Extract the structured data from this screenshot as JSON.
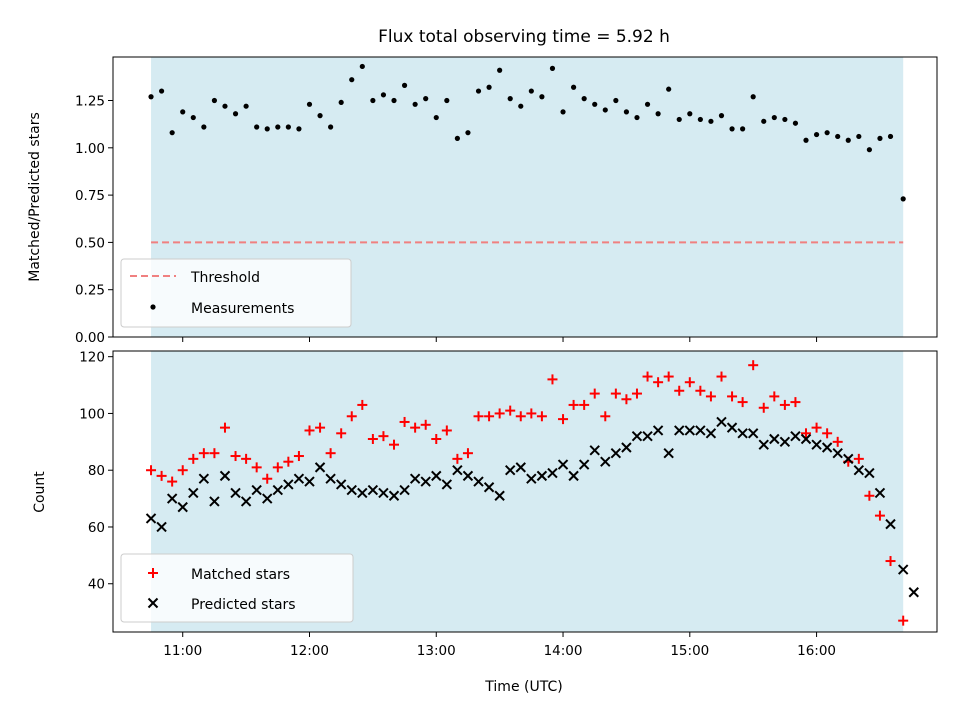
{
  "title": "Flux total observing time = 5.92 h",
  "colors": {
    "shade": "#add8e6",
    "threshold": "#f08080",
    "measurement": "#000000",
    "matched": "#ff0000",
    "predicted": "#000000"
  },
  "chart_data": [
    {
      "type": "scatter",
      "ylabel": "Matched/Predicted stars",
      "xlabel": "",
      "xlim": [
        "10:27",
        "16:57"
      ],
      "ylim": [
        0.0,
        1.48
      ],
      "yticks": [
        "0.00",
        "0.25",
        "0.50",
        "0.75",
        "1.00",
        "1.25"
      ],
      "ytick_values": [
        0.0,
        0.25,
        0.5,
        0.75,
        1.0,
        1.25
      ],
      "observing_window": [
        "10:45",
        "16:41"
      ],
      "threshold": 0.5,
      "legend": {
        "position": "lower-left",
        "entries": [
          "Threshold",
          "Measurements"
        ]
      },
      "series": [
        {
          "name": "Measurements",
          "marker": "dot",
          "x": [
            "10:45",
            "10:50",
            "10:55",
            "11:00",
            "11:05",
            "11:10",
            "11:15",
            "11:20",
            "11:25",
            "11:30",
            "11:35",
            "11:40",
            "11:45",
            "11:50",
            "11:55",
            "12:00",
            "12:05",
            "12:10",
            "12:15",
            "12:20",
            "12:25",
            "12:30",
            "12:35",
            "12:40",
            "12:45",
            "12:50",
            "12:55",
            "13:00",
            "13:05",
            "13:10",
            "13:15",
            "13:20",
            "13:25",
            "13:30",
            "13:35",
            "13:40",
            "13:45",
            "13:50",
            "13:55",
            "14:00",
            "14:05",
            "14:10",
            "14:15",
            "14:20",
            "14:25",
            "14:30",
            "14:35",
            "14:40",
            "14:45",
            "14:50",
            "14:55",
            "15:00",
            "15:05",
            "15:10",
            "15:15",
            "15:20",
            "15:25",
            "15:30",
            "15:35",
            "15:40",
            "15:45",
            "15:50",
            "15:55",
            "16:00",
            "16:05",
            "16:10",
            "16:15",
            "16:20",
            "16:25",
            "16:30",
            "16:35",
            "16:41"
          ],
          "y": [
            1.27,
            1.3,
            1.08,
            1.19,
            1.16,
            1.11,
            1.25,
            1.22,
            1.18,
            1.22,
            1.11,
            1.1,
            1.11,
            1.11,
            1.1,
            1.23,
            1.17,
            1.11,
            1.24,
            1.36,
            1.43,
            1.25,
            1.28,
            1.25,
            1.33,
            1.23,
            1.26,
            1.16,
            1.25,
            1.05,
            1.08,
            1.3,
            1.32,
            1.41,
            1.26,
            1.22,
            1.3,
            1.27,
            1.42,
            1.19,
            1.32,
            1.26,
            1.23,
            1.2,
            1.25,
            1.19,
            1.16,
            1.23,
            1.18,
            1.31,
            1.15,
            1.18,
            1.15,
            1.14,
            1.17,
            1.1,
            1.1,
            1.27,
            1.14,
            1.16,
            1.15,
            1.13,
            1.04,
            1.07,
            1.08,
            1.06,
            1.04,
            1.06,
            0.99,
            1.05,
            1.06,
            0.73
          ]
        }
      ]
    },
    {
      "type": "scatter",
      "ylabel": "Count",
      "xlabel": "Time (UTC)",
      "xlim": [
        "10:27",
        "16:57"
      ],
      "ylim": [
        23,
        122
      ],
      "yticks": [
        "40",
        "60",
        "80",
        "100",
        "120"
      ],
      "ytick_values": [
        40,
        60,
        80,
        100,
        120
      ],
      "xticks": [
        "11:00",
        "12:00",
        "13:00",
        "14:00",
        "15:00",
        "16:00"
      ],
      "observing_window": [
        "10:45",
        "16:41"
      ],
      "legend": {
        "position": "lower-left",
        "entries": [
          "Matched stars",
          "Predicted stars"
        ]
      },
      "series": [
        {
          "name": "Matched stars",
          "marker": "plus",
          "x": [
            "10:45",
            "10:50",
            "10:55",
            "11:00",
            "11:05",
            "11:10",
            "11:15",
            "11:20",
            "11:25",
            "11:30",
            "11:35",
            "11:40",
            "11:45",
            "11:50",
            "11:55",
            "12:00",
            "12:05",
            "12:10",
            "12:15",
            "12:20",
            "12:25",
            "12:30",
            "12:35",
            "12:40",
            "12:45",
            "12:50",
            "12:55",
            "13:00",
            "13:05",
            "13:10",
            "13:15",
            "13:20",
            "13:25",
            "13:30",
            "13:35",
            "13:40",
            "13:45",
            "13:50",
            "13:55",
            "14:00",
            "14:05",
            "14:10",
            "14:15",
            "14:20",
            "14:25",
            "14:30",
            "14:35",
            "14:40",
            "14:45",
            "14:50",
            "14:55",
            "15:00",
            "15:05",
            "15:10",
            "15:15",
            "15:20",
            "15:25",
            "15:30",
            "15:35",
            "15:40",
            "15:45",
            "15:50",
            "15:55",
            "16:00",
            "16:05",
            "16:10",
            "16:15",
            "16:20",
            "16:25",
            "16:30",
            "16:35",
            "16:41"
          ],
          "y": [
            80,
            78,
            76,
            80,
            84,
            86,
            86,
            95,
            85,
            84,
            81,
            77,
            81,
            83,
            85,
            94,
            95,
            86,
            93,
            99,
            103,
            91,
            92,
            89,
            97,
            95,
            96,
            91,
            94,
            84,
            86,
            99,
            99,
            100,
            101,
            99,
            100,
            99,
            112,
            98,
            103,
            103,
            107,
            99,
            107,
            105,
            107,
            113,
            111,
            113,
            108,
            111,
            108,
            106,
            113,
            106,
            104,
            117,
            102,
            106,
            103,
            104,
            93,
            95,
            93,
            90,
            83,
            84,
            71,
            64,
            48,
            27
          ]
        },
        {
          "name": "Predicted stars",
          "marker": "x",
          "x": [
            "10:45",
            "10:50",
            "10:55",
            "11:00",
            "11:05",
            "11:10",
            "11:15",
            "11:20",
            "11:25",
            "11:30",
            "11:35",
            "11:40",
            "11:45",
            "11:50",
            "11:55",
            "12:00",
            "12:05",
            "12:10",
            "12:15",
            "12:20",
            "12:25",
            "12:30",
            "12:35",
            "12:40",
            "12:45",
            "12:50",
            "12:55",
            "13:00",
            "13:05",
            "13:10",
            "13:15",
            "13:20",
            "13:25",
            "13:30",
            "13:35",
            "13:40",
            "13:45",
            "13:50",
            "13:55",
            "14:00",
            "14:05",
            "14:10",
            "14:15",
            "14:20",
            "14:25",
            "14:30",
            "14:35",
            "14:40",
            "14:45",
            "14:50",
            "14:55",
            "15:00",
            "15:05",
            "15:10",
            "15:15",
            "15:20",
            "15:25",
            "15:30",
            "15:35",
            "15:40",
            "15:45",
            "15:50",
            "15:55",
            "16:00",
            "16:05",
            "16:10",
            "16:15",
            "16:20",
            "16:25",
            "16:30",
            "16:35",
            "16:41"
          ],
          "y": [
            63,
            60,
            70,
            67,
            72,
            77,
            69,
            78,
            72,
            69,
            73,
            70,
            73,
            75,
            77,
            76,
            81,
            77,
            75,
            73,
            72,
            73,
            72,
            71,
            73,
            77,
            76,
            78,
            75,
            80,
            78,
            76,
            74,
            71,
            80,
            81,
            77,
            78,
            79,
            82,
            78,
            82,
            87,
            83,
            86,
            88,
            92,
            92,
            94,
            86,
            94,
            94,
            94,
            93,
            97,
            95,
            93,
            93,
            89,
            91,
            90,
            92,
            91,
            89,
            88,
            86,
            84,
            80,
            79,
            72,
            61,
            45
          ]
        },
        {
          "name": "Predicted stars",
          "marker": "x",
          "x": [
            "16:46"
          ],
          "y": [
            37
          ]
        }
      ]
    }
  ]
}
